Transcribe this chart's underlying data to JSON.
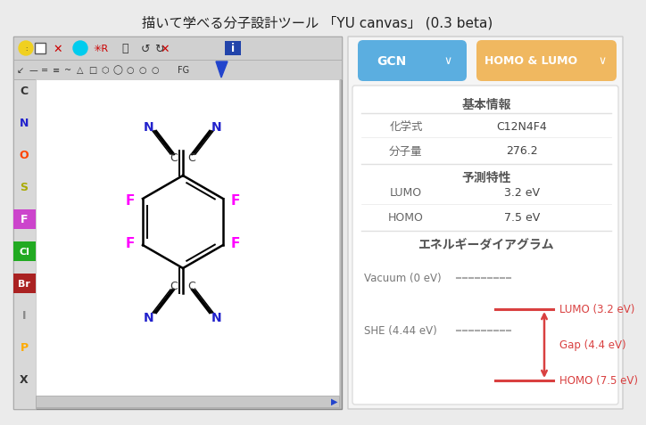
{
  "title": "描いて学べる分子設計ツール 「YU canvas」 (0.3 beta)",
  "title_fontsize": 11,
  "bg_color": "#ebebeb",
  "right_panel_bg": "#ffffff",
  "toolbar_bg": "#c8c8c8",
  "btn_gcn_color": "#5baee0",
  "btn_homo_color": "#f0b860",
  "red_color": "#d94040",
  "dashed_color": "#aaaaaa",
  "mol_canvas_bg": "#ffffff",
  "mol_F_color": "#ff00ff",
  "mol_N_color": "#2222cc",
  "basic_info_label": "基本情報",
  "formula_label": "化学式",
  "formula_value": "C12N4F4",
  "mw_label": "分子量",
  "mw_value": "276.2",
  "pred_label": "予測特性",
  "lumo_label": "LUMO",
  "lumo_value": "3.2 eV",
  "homo_label": "HOMO",
  "homo_value": "7.5 eV",
  "energy_label": "エネルギーダイアグラム",
  "vacuum_label": "Vacuum (0 eV)",
  "she_label": "SHE (4.44 eV)",
  "lumo_diag_label": "LUMO (3.2 eV)",
  "gap_label": "Gap (4.4 eV)",
  "homo_diag_label": "HOMO (7.5 eV)",
  "sidebar_labels": [
    "C",
    "N",
    "O",
    "S",
    "F",
    "Cl",
    "Br",
    "I",
    "P",
    "X"
  ],
  "sidebar_colors": [
    "#333333",
    "#2222cc",
    "#ff4400",
    "#aaaa00",
    "#cc44cc",
    "#22aa22",
    "#aa2222",
    "#888888",
    "#ffaa00",
    "#333333"
  ],
  "sidebar_highlighted": [
    "F",
    "Cl",
    "Br"
  ],
  "sidebar_highlight_colors": {
    "F": "#cc44cc",
    "Cl": "#22aa22",
    "Br": "#aa2222"
  }
}
